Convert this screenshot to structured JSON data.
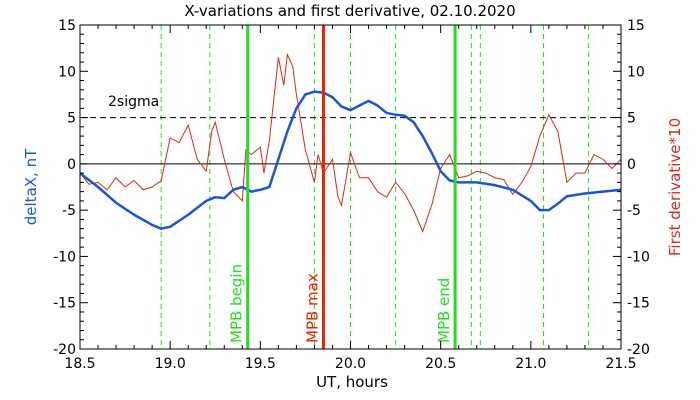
{
  "chart_data": {
    "type": "line",
    "title": "X-variations and first derivative, 02.10.2020",
    "xlabel": "UT, hours",
    "ylabel_left": "deltaX, nT",
    "ylabel_right": "First derivative*10",
    "xlim": [
      18.5,
      21.5
    ],
    "ylim": [
      -20,
      15
    ],
    "y2lim": [
      -20,
      15
    ],
    "xticks": [
      "18.5",
      "19.0",
      "19.5",
      "20.0",
      "20.5",
      "21.0",
      "21.5"
    ],
    "yticks": [
      "-20",
      "-15",
      "-10",
      "-5",
      "0",
      "5",
      "10",
      "15"
    ],
    "grid": false,
    "colors": {
      "deltaX": "#1a55d6",
      "derivative": "#d42a1a",
      "mpb": "#22dd22",
      "mpb_max": "#ee2200",
      "axis": "#000000"
    },
    "series": [
      {
        "name": "deltaX, nT",
        "axis": "left",
        "x": [
          18.5,
          18.6,
          18.7,
          18.8,
          18.9,
          18.95,
          19.0,
          19.1,
          19.2,
          19.25,
          19.3,
          19.35,
          19.4,
          19.45,
          19.5,
          19.55,
          19.6,
          19.65,
          19.7,
          19.75,
          19.8,
          19.85,
          19.9,
          19.95,
          20.0,
          20.05,
          20.1,
          20.15,
          20.2,
          20.25,
          20.3,
          20.35,
          20.4,
          20.45,
          20.5,
          20.55,
          20.6,
          20.7,
          20.8,
          20.9,
          21.0,
          21.05,
          21.1,
          21.15,
          21.2,
          21.3,
          21.4,
          21.5
        ],
        "y": [
          -1.0,
          -2.5,
          -4.2,
          -5.5,
          -6.6,
          -7.0,
          -6.8,
          -5.5,
          -4.0,
          -3.6,
          -3.7,
          -2.8,
          -2.5,
          -3.0,
          -2.8,
          -2.5,
          0.5,
          3.5,
          6.0,
          7.5,
          7.8,
          7.7,
          7.2,
          6.2,
          5.8,
          6.3,
          6.8,
          6.3,
          5.5,
          5.3,
          5.2,
          4.5,
          3.0,
          1.2,
          -0.8,
          -1.8,
          -2.0,
          -2.0,
          -2.3,
          -2.8,
          -4.0,
          -5.0,
          -5.0,
          -4.3,
          -3.5,
          -3.2,
          -3.0,
          -2.8
        ]
      },
      {
        "name": "First derivative*10",
        "axis": "right",
        "x": [
          18.5,
          18.55,
          18.6,
          18.65,
          18.7,
          18.75,
          18.8,
          18.85,
          18.9,
          18.95,
          19.0,
          19.05,
          19.1,
          19.15,
          19.2,
          19.23,
          19.25,
          19.3,
          19.35,
          19.4,
          19.42,
          19.45,
          19.5,
          19.52,
          19.55,
          19.6,
          19.63,
          19.65,
          19.68,
          19.7,
          19.75,
          19.8,
          19.82,
          19.85,
          19.9,
          19.93,
          19.95,
          20.0,
          20.05,
          20.1,
          20.15,
          20.2,
          20.25,
          20.3,
          20.35,
          20.4,
          20.45,
          20.5,
          20.55,
          20.6,
          20.65,
          20.7,
          20.75,
          20.8,
          20.85,
          20.9,
          20.95,
          21.0,
          21.05,
          21.1,
          21.15,
          21.2,
          21.25,
          21.3,
          21.35,
          21.4,
          21.45,
          21.5
        ],
        "y": [
          -1.0,
          -2.2,
          -2.0,
          -2.8,
          -1.5,
          -2.5,
          -1.8,
          -2.8,
          -2.5,
          -1.8,
          2.8,
          2.3,
          4.2,
          0.5,
          -0.8,
          3.5,
          4.5,
          0.5,
          -3.0,
          -4.0,
          1.5,
          1.0,
          1.8,
          -1.0,
          2.5,
          11.5,
          8.5,
          11.8,
          10.5,
          7.5,
          1.5,
          -2.0,
          1.0,
          -1.0,
          0.5,
          -3.5,
          -4.5,
          1.2,
          -1.5,
          -1.5,
          -3.0,
          -3.6,
          -2.0,
          -3.2,
          -5.0,
          -7.3,
          -4.5,
          -0.5,
          1.0,
          -1.5,
          -1.3,
          -0.8,
          -1.0,
          -1.5,
          -1.7,
          -3.3,
          -2.0,
          -0.3,
          3.0,
          5.3,
          3.5,
          -2.0,
          -1.0,
          -1.0,
          1.0,
          0.5,
          -0.5,
          0.5
        ]
      }
    ],
    "reference_lines": {
      "sigma": {
        "y": 5,
        "label": "2sigma"
      },
      "zero": {
        "y": 0
      }
    },
    "dashed_verticals": [
      18.95,
      19.22,
      19.8,
      20.0,
      20.25,
      20.67,
      20.72,
      21.07,
      21.32
    ],
    "markers": [
      {
        "label": "MPB begin",
        "x": 19.43,
        "color": "#22dd22"
      },
      {
        "label": "MPB max",
        "x": 19.85,
        "color": "#ee2200"
      },
      {
        "label": "MPB end",
        "x": 20.58,
        "color": "#22dd22"
      }
    ]
  }
}
